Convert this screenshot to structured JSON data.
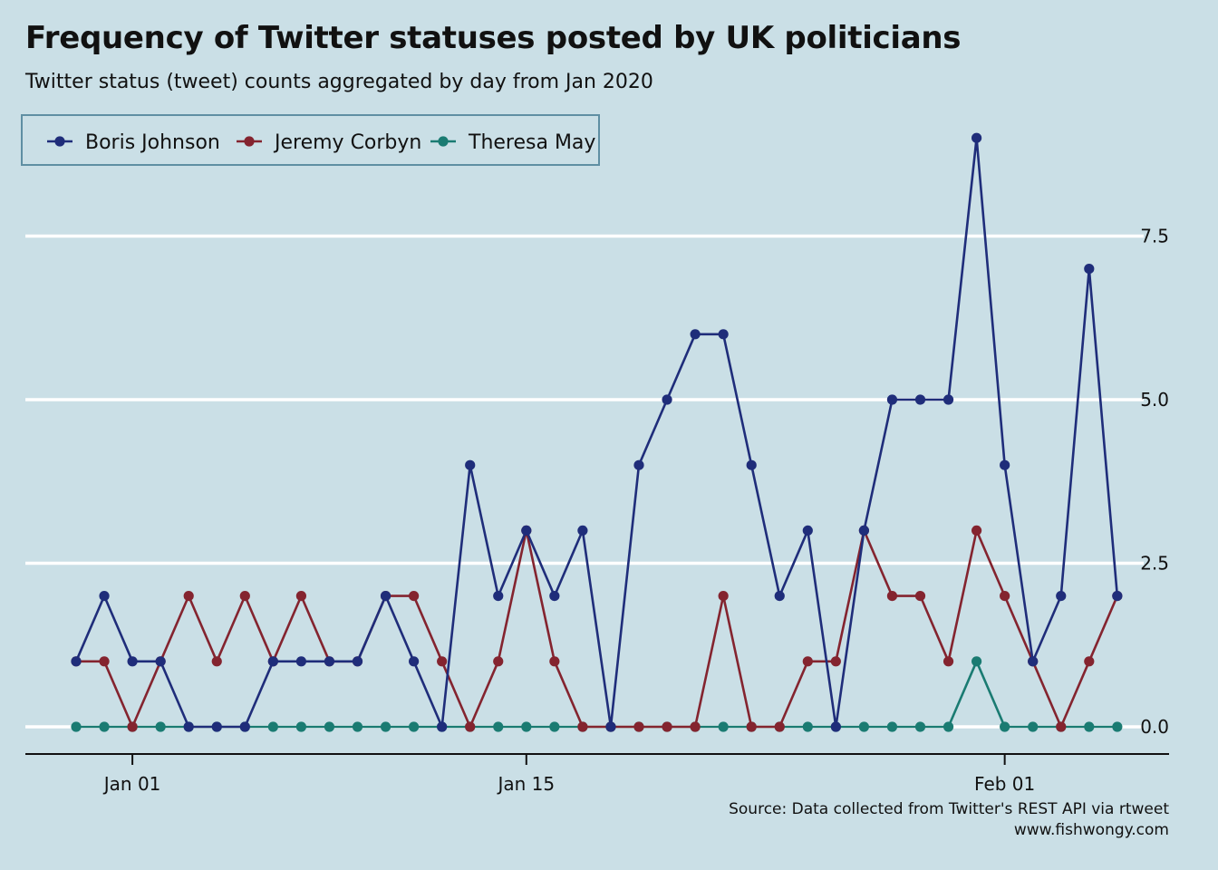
{
  "title": "Frequency of Twitter statuses posted by UK politicians",
  "subtitle": "Twitter status (tweet) counts aggregated by day from Jan 2020",
  "caption": {
    "line1": "Source: Data collected from Twitter's REST API via rtweet",
    "line2": "www.fishwongy.com"
  },
  "chart_data": {
    "type": "line",
    "title": "Frequency of Twitter statuses posted by UK politicians",
    "subtitle": "Twitter status (tweet) counts aggregated by day from Jan 2020",
    "xlabel": "",
    "ylabel": "",
    "x": [
      "2019-12-30",
      "2019-12-31",
      "2020-01-01",
      "2020-01-02",
      "2020-01-03",
      "2020-01-04",
      "2020-01-05",
      "2020-01-06",
      "2020-01-07",
      "2020-01-08",
      "2020-01-09",
      "2020-01-10",
      "2020-01-11",
      "2020-01-12",
      "2020-01-13",
      "2020-01-14",
      "2020-01-15",
      "2020-01-16",
      "2020-01-17",
      "2020-01-18",
      "2020-01-19",
      "2020-01-20",
      "2020-01-21",
      "2020-01-22",
      "2020-01-23",
      "2020-01-24",
      "2020-01-25",
      "2020-01-26",
      "2020-01-27",
      "2020-01-28",
      "2020-01-29",
      "2020-01-30",
      "2020-01-31",
      "2020-02-01",
      "2020-02-02",
      "2020-02-03",
      "2020-02-04",
      "2020-02-05"
    ],
    "x_ticks": [
      {
        "date": "2020-01-01",
        "label": "Jan 01"
      },
      {
        "date": "2020-01-15",
        "label": "Jan 15"
      },
      {
        "date": "2020-02-01",
        "label": "Feb 01"
      }
    ],
    "y_ticks": [
      {
        "value": 0,
        "label": "0.0"
      },
      {
        "value": 2.5,
        "label": "2.5"
      },
      {
        "value": 5,
        "label": "5.0"
      },
      {
        "value": 7.5,
        "label": "7.5"
      }
    ],
    "ylim": [
      -0.42,
      9.3
    ],
    "y_axis_position": "right",
    "grid": "horizontal",
    "legend_position": "top-left",
    "series": [
      {
        "name": "Boris Johnson",
        "color": "#1f2d7a",
        "values": [
          1,
          2,
          1,
          1,
          0,
          0,
          0,
          1,
          1,
          1,
          1,
          2,
          1,
          0,
          4,
          2,
          3,
          2,
          3,
          0,
          4,
          5,
          6,
          6,
          4,
          2,
          3,
          0,
          3,
          5,
          5,
          5,
          9,
          4,
          1,
          2,
          7,
          2
        ]
      },
      {
        "name": "Jeremy Corbyn",
        "color": "#84242f",
        "values": [
          1,
          1,
          0,
          1,
          2,
          1,
          2,
          1,
          2,
          1,
          1,
          2,
          2,
          1,
          0,
          1,
          3,
          1,
          0,
          0,
          0,
          0,
          0,
          2,
          0,
          0,
          1,
          1,
          3,
          2,
          2,
          1,
          3,
          2,
          1,
          0,
          1,
          2
        ]
      },
      {
        "name": "Theresa May",
        "color": "#1a7b72",
        "values": [
          0,
          0,
          0,
          0,
          0,
          0,
          0,
          0,
          0,
          0,
          0,
          0,
          0,
          0,
          0,
          0,
          0,
          0,
          0,
          0,
          0,
          0,
          0,
          0,
          0,
          0,
          0,
          0,
          0,
          0,
          0,
          0,
          1,
          0,
          0,
          0,
          0,
          0
        ]
      }
    ]
  }
}
